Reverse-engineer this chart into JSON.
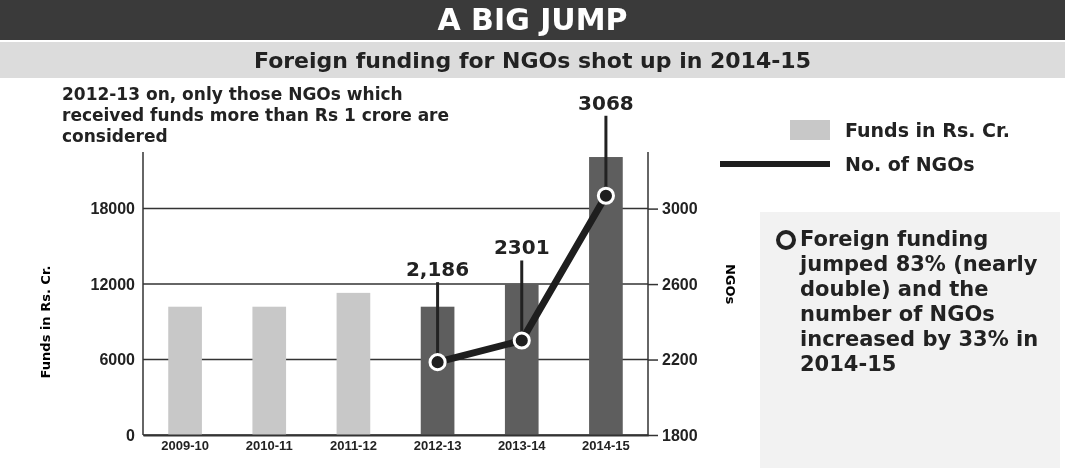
{
  "chart_data": {
    "type": "bar",
    "title": "A BIG JUMP",
    "subtitle": "Foreign funding for NGOs shot up in 2014-15",
    "ylabel": "Funds in Rs. Cr.",
    "y2label": "NGOs",
    "categories": [
      "2009-10",
      "2010-11",
      "2011-12",
      "2012-13",
      "2013-14",
      "2014-15"
    ],
    "series": [
      {
        "name": "Funds in Rs. Cr.",
        "color": "#c8c8c8",
        "colors": [
          "#c8c8c8",
          "#c8c8c8",
          "#c8c8c8",
          "#5e5e5e",
          "#5e5e5e",
          "#5e5e5e"
        ],
        "values": [
          10200,
          10200,
          11300,
          10200,
          12000,
          22100
        ]
      },
      {
        "name": "No. of NGOs",
        "type": "line",
        "axis": "y2",
        "color": "#1e1e1e",
        "marker": "circle",
        "values": [
          null,
          null,
          null,
          2186,
          2301,
          3068
        ],
        "value_labels": [
          null,
          null,
          null,
          "2,186",
          "2301",
          "3068"
        ]
      }
    ],
    "ylim": [
      0,
      22500
    ],
    "yticks": [
      0,
      6000,
      12000,
      18000
    ],
    "y2lim": [
      1800,
      3300
    ],
    "y2ticks": [
      1800,
      2200,
      2600,
      3000
    ],
    "grid": "y",
    "legend": "top right",
    "annotations": [
      "2012-13 on, only those NGOs which received funds more than Rs 1 crore are considered",
      "Foreign funding jumped 83% (nearly double) and the number of NGOs increased by 33% in 2014-15"
    ]
  }
}
